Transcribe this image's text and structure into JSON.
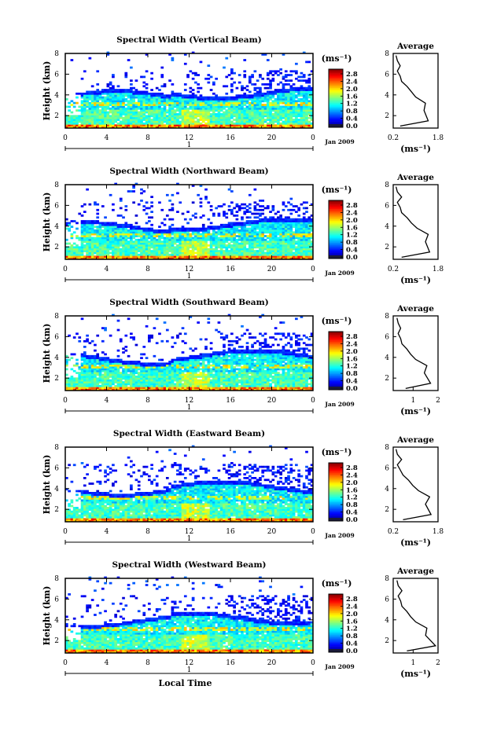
{
  "chart_data": [
    {
      "type": "heatmap",
      "title": "Spectral Width (Vertical Beam)",
      "ylabel": "Height (km)",
      "xlabel": "",
      "x_ticks": [
        "0",
        "4",
        "8",
        "12",
        "16",
        "20",
        "0"
      ],
      "y_ticks": [
        "2",
        "4",
        "6",
        "8"
      ],
      "xlim": [
        0,
        24
      ],
      "ylim": [
        0.8,
        8
      ],
      "day_label": "1",
      "date_label": "Jan 2009",
      "colorbar": {
        "unit": "(ms⁻¹)",
        "ticks": [
          "2.8",
          "2.4",
          "2.0",
          "1.6",
          "1.2",
          "0.8",
          "0.4",
          "0.0"
        ],
        "range": [
          0,
          2.8
        ]
      },
      "average_profile": {
        "title": "Average",
        "xlabel": "(ms⁻¹)",
        "x_ticks": [
          "0.2",
          "1.8"
        ],
        "xlim": [
          0.2,
          1.8
        ],
        "ylim": [
          0.8,
          8
        ],
        "width": [
          0.45,
          1.45,
          1.3,
          1.35,
          1.0,
          0.85,
          0.7,
          0.5,
          0.45,
          0.35,
          0.45,
          0.35,
          0.3
        ],
        "height": [
          1.0,
          1.5,
          2.5,
          3.2,
          3.8,
          4.3,
          4.8,
          5.3,
          5.8,
          6.3,
          6.8,
          7.3,
          7.8
        ]
      }
    },
    {
      "type": "heatmap",
      "title": "Spectral Width (Northward Beam)",
      "ylabel": "Height (km)",
      "xlabel": "",
      "x_ticks": [
        "0",
        "4",
        "8",
        "12",
        "16",
        "20",
        "0"
      ],
      "y_ticks": [
        "2",
        "4",
        "6",
        "8"
      ],
      "xlim": [
        0,
        24
      ],
      "ylim": [
        0.8,
        8
      ],
      "day_label": "1",
      "date_label": "Jan 2009",
      "colorbar": {
        "unit": "(ms⁻¹)",
        "ticks": [
          "2.8",
          "2.4",
          "2.0",
          "1.6",
          "1.2",
          "0.8",
          "0.4",
          "0.0"
        ],
        "range": [
          0,
          2.8
        ]
      },
      "average_profile": {
        "title": "Average",
        "xlabel": "(ms⁻¹)",
        "x_ticks": [
          "0.2",
          "1.8"
        ],
        "xlim": [
          0.2,
          1.8
        ],
        "ylim": [
          0.8,
          8
        ],
        "width": [
          0.5,
          1.5,
          1.35,
          1.45,
          1.05,
          0.85,
          0.7,
          0.5,
          0.45,
          0.35,
          0.5,
          0.35,
          0.3
        ],
        "height": [
          1.0,
          1.5,
          2.5,
          3.2,
          3.8,
          4.3,
          4.8,
          5.3,
          5.8,
          6.3,
          6.8,
          7.3,
          7.8
        ]
      }
    },
    {
      "type": "heatmap",
      "title": "Spectral Width (Southward Beam)",
      "ylabel": "Height (km)",
      "xlabel": "",
      "x_ticks": [
        "0",
        "4",
        "8",
        "12",
        "16",
        "20",
        "0"
      ],
      "y_ticks": [
        "2",
        "4",
        "6",
        "8"
      ],
      "xlim": [
        0,
        24
      ],
      "ylim": [
        0.8,
        8
      ],
      "day_label": "1",
      "date_label": "Jan 2009",
      "colorbar": {
        "unit": "(ms⁻¹)",
        "ticks": [
          "2.8",
          "2.4",
          "2.0",
          "1.6",
          "1.2",
          "0.8",
          "0.4",
          "0.0"
        ],
        "range": [
          0,
          2.8
        ]
      },
      "average_profile": {
        "title": "Average",
        "xlabel": "(ms⁻¹)",
        "x_ticks": [
          "1",
          "2"
        ],
        "xlim": [
          0.2,
          2
        ],
        "ylim": [
          0.8,
          8
        ],
        "width": [
          0.7,
          1.7,
          1.45,
          1.55,
          1.1,
          0.9,
          0.75,
          0.55,
          0.5,
          0.4,
          0.5,
          0.4,
          0.35
        ],
        "height": [
          1.0,
          1.5,
          2.5,
          3.2,
          3.8,
          4.3,
          4.8,
          5.3,
          5.8,
          6.3,
          6.8,
          7.3,
          7.8
        ]
      }
    },
    {
      "type": "heatmap",
      "title": "Spectral Width (Eastward Beam)",
      "ylabel": "Height (km)",
      "xlabel": "",
      "x_ticks": [
        "0",
        "4",
        "8",
        "12",
        "16",
        "20",
        "0"
      ],
      "y_ticks": [
        "2",
        "4",
        "6",
        "8"
      ],
      "xlim": [
        0,
        24
      ],
      "ylim": [
        0.8,
        8
      ],
      "day_label": "1",
      "date_label": "Jan 2009",
      "colorbar": {
        "unit": "(ms⁻¹)",
        "ticks": [
          "2.8",
          "2.4",
          "2.0",
          "1.6",
          "1.2",
          "0.8",
          "0.4",
          "0.0"
        ],
        "range": [
          0,
          2.8
        ]
      },
      "average_profile": {
        "title": "Average",
        "xlabel": "(ms⁻¹)",
        "x_ticks": [
          "0.2",
          "1.8"
        ],
        "xlim": [
          0.2,
          1.8
        ],
        "ylim": [
          0.8,
          8
        ],
        "width": [
          0.55,
          1.55,
          1.35,
          1.5,
          1.1,
          0.9,
          0.75,
          0.55,
          0.45,
          0.35,
          0.5,
          0.35,
          0.3
        ],
        "height": [
          1.0,
          1.5,
          2.5,
          3.2,
          3.8,
          4.3,
          4.8,
          5.3,
          5.8,
          6.3,
          6.8,
          7.3,
          7.8
        ]
      }
    },
    {
      "type": "heatmap",
      "title": "Spectral Width (Westward Beam)",
      "ylabel": "Height (km)",
      "xlabel": "Local Time",
      "x_ticks": [
        "0",
        "4",
        "8",
        "12",
        "16",
        "20",
        "0"
      ],
      "y_ticks": [
        "2",
        "4",
        "6",
        "8"
      ],
      "xlim": [
        0,
        24
      ],
      "ylim": [
        0.8,
        8
      ],
      "day_label": "1",
      "date_label": "Jan 2009",
      "colorbar": {
        "unit": "(ms⁻¹)",
        "ticks": [
          "2.8",
          "2.4",
          "2.0",
          "1.6",
          "1.2",
          "0.8",
          "0.4",
          "0.0"
        ],
        "range": [
          0,
          2.8
        ]
      },
      "average_profile": {
        "title": "Average",
        "xlabel": "(ms⁻¹)",
        "x_ticks": [
          "1",
          "2"
        ],
        "xlim": [
          0.2,
          2
        ],
        "ylim": [
          0.8,
          8
        ],
        "width": [
          0.75,
          1.9,
          1.5,
          1.55,
          1.1,
          0.9,
          0.75,
          0.55,
          0.5,
          0.4,
          0.55,
          0.4,
          0.35
        ],
        "height": [
          1.0,
          1.5,
          2.5,
          3.2,
          3.8,
          4.3,
          4.8,
          5.3,
          5.8,
          6.3,
          6.8,
          7.3,
          7.8
        ]
      }
    }
  ]
}
